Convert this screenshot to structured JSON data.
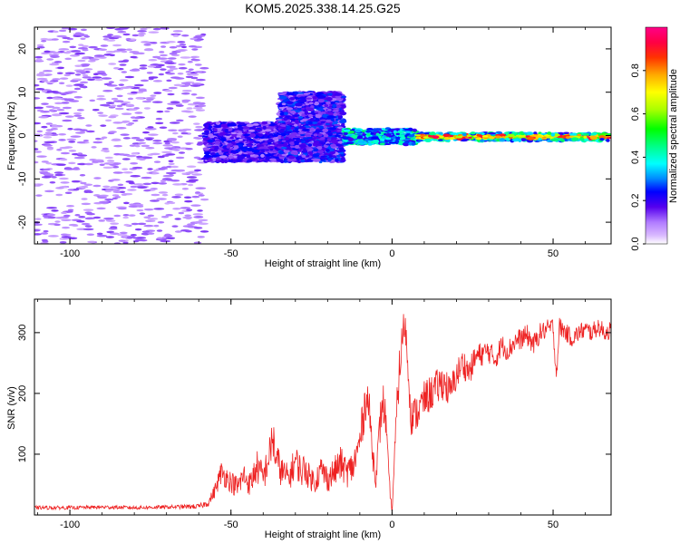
{
  "title": "KOM5.2025.338.14.25.G25",
  "colors": {
    "snr_line": "#ee2222",
    "frame": "#000000",
    "background": "#ffffff"
  },
  "chart_data": [
    {
      "type": "heatmap",
      "name": "spectrogram",
      "xlabel": "Height of straight line (km)",
      "ylabel": "Frequency (Hz)",
      "xlim": [
        -111,
        68
      ],
      "ylim": [
        -25,
        25
      ],
      "xticks": [
        -100,
        -50,
        0,
        50
      ],
      "yticks": [
        -20,
        -10,
        0,
        10,
        20
      ],
      "colorbar": {
        "label": "Normalized spectral amplitude",
        "range": [
          0,
          1
        ],
        "ticks": [
          0.0,
          0.2,
          0.4,
          0.6,
          0.8
        ]
      },
      "zones": [
        {
          "x_range": [
            -111,
            -58
          ],
          "freq_range": [
            -25,
            25
          ],
          "level": 0.1,
          "description": "scattered noise"
        },
        {
          "x_range": [
            -58,
            -35
          ],
          "freq_range": [
            -6,
            3
          ],
          "level": 0.18
        },
        {
          "x_range": [
            -35,
            -15
          ],
          "freq_range": [
            -6,
            10
          ],
          "level": 0.2
        },
        {
          "x_range": [
            -15,
            8
          ],
          "freq_range": [
            -2,
            1.5
          ],
          "level": 0.35
        },
        {
          "x_range": [
            8,
            68
          ],
          "freq_range": [
            -1.2,
            0.6
          ],
          "level": 0.9,
          "description": "strong narrow carrier"
        }
      ]
    },
    {
      "type": "line",
      "name": "snr",
      "xlabel": "Height of straight line (km)",
      "ylabel": "SNR (v/v)",
      "xlim": [
        -111,
        68
      ],
      "ylim": [
        0,
        355
      ],
      "xticks": [
        -100,
        -50,
        0,
        50
      ],
      "yticks": [
        100,
        200,
        300
      ],
      "series": [
        {
          "name": "SNR",
          "x": [
            -111,
            -100,
            -90,
            -80,
            -70,
            -60,
            -57,
            -55,
            -53,
            -50,
            -48,
            -46,
            -44,
            -42,
            -40,
            -38,
            -37,
            -36,
            -34,
            -32,
            -30,
            -28,
            -27,
            -26,
            -24,
            -22,
            -20,
            -18,
            -16,
            -14,
            -12,
            -10,
            -8,
            -7,
            -6,
            -5,
            -4,
            -3,
            -2,
            -1,
            0,
            1,
            2,
            3,
            4,
            5,
            6,
            8,
            10,
            12,
            14,
            16,
            18,
            20,
            22,
            24,
            26,
            28,
            30,
            32,
            34,
            36,
            38,
            40,
            42,
            44,
            46,
            48,
            50,
            51,
            52,
            54,
            56,
            58,
            60,
            62,
            64,
            66,
            68
          ],
          "values": [
            12,
            12,
            13,
            12,
            13,
            14,
            20,
            40,
            70,
            55,
            45,
            65,
            50,
            80,
            60,
            100,
            130,
            90,
            70,
            60,
            90,
            70,
            80,
            65,
            55,
            75,
            60,
            70,
            85,
            70,
            80,
            120,
            200,
            170,
            100,
            60,
            130,
            190,
            160,
            60,
            5,
            120,
            220,
            280,
            320,
            240,
            160,
            170,
            190,
            200,
            210,
            220,
            200,
            230,
            250,
            235,
            260,
            265,
            270,
            255,
            280,
            270,
            285,
            290,
            295,
            280,
            300,
            305,
            310,
            230,
            310,
            300,
            290,
            300,
            305,
            300,
            310,
            300,
            305
          ],
          "noise_amplitude": [
            3,
            3,
            3,
            3,
            3,
            4,
            6,
            12,
            20,
            18,
            20,
            22,
            20,
            28,
            25,
            30,
            40,
            32,
            25,
            22,
            28,
            25,
            28,
            22,
            20,
            25,
            22,
            25,
            28,
            25,
            28,
            30,
            40,
            30,
            25,
            15,
            30,
            40,
            30,
            15,
            3,
            25,
            40,
            35,
            30,
            30,
            30,
            30,
            30,
            30,
            30,
            30,
            28,
            25,
            25,
            22,
            22,
            20,
            20,
            18,
            18,
            18,
            18,
            18,
            18,
            18,
            16,
            16,
            16,
            15,
            16,
            15,
            15,
            15,
            15,
            15,
            15,
            15,
            15
          ]
        }
      ]
    }
  ]
}
